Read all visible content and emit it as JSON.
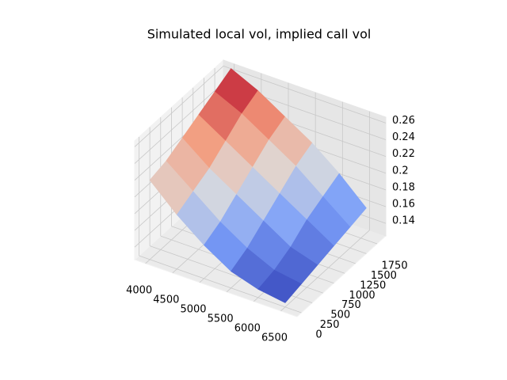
{
  "chart_data": {
    "type": "surface",
    "title": "Simulated local vol, implied call vol",
    "x": [
      4000,
      4500,
      5000,
      5500,
      6000,
      6500
    ],
    "y": [
      0,
      375,
      750,
      1125,
      1500,
      1875
    ],
    "z": [
      [
        0.22,
        0.225,
        0.235,
        0.245,
        0.255,
        0.265
      ],
      [
        0.19,
        0.2,
        0.21,
        0.225,
        0.24,
        0.25
      ],
      [
        0.165,
        0.175,
        0.19,
        0.205,
        0.22,
        0.23
      ],
      [
        0.145,
        0.155,
        0.17,
        0.185,
        0.2,
        0.21
      ],
      [
        0.135,
        0.14,
        0.15,
        0.165,
        0.175,
        0.185
      ],
      [
        0.13,
        0.135,
        0.14,
        0.145,
        0.15,
        0.155
      ]
    ],
    "xlim": [
      3800,
      6800
    ],
    "ylim": [
      -100,
      1950
    ],
    "zlim": [
      0.125,
      0.267
    ],
    "xticks": [
      4000,
      4500,
      5000,
      5500,
      6000,
      6500
    ],
    "yticks": [
      0,
      250,
      500,
      750,
      1000,
      1250,
      1500,
      1750
    ],
    "zticks": [
      0.14,
      0.16,
      0.18,
      0.2,
      0.22,
      0.24,
      0.26
    ],
    "colormap": "coolwarm",
    "grid": true
  }
}
